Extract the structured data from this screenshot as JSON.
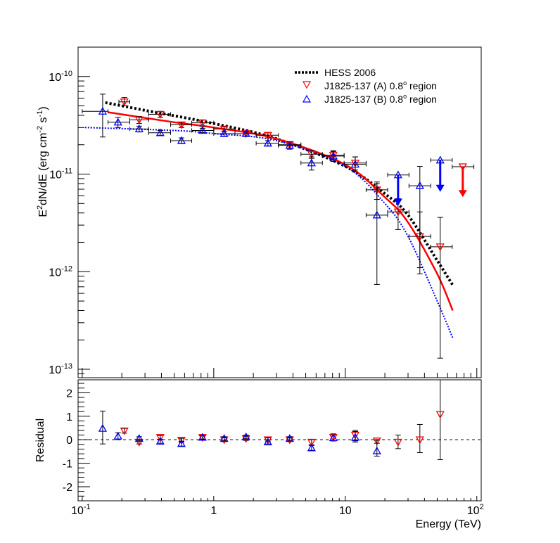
{
  "chart_data": [
    {
      "type": "scatter",
      "panel": "spectrum",
      "title": "",
      "xlabel": "Energy (TeV)",
      "ylabel": "E^2dN/dE (erg cm^-2 s^-1)",
      "ylabel_parts": {
        "pre": "E",
        "sup1": "2",
        "mid": "dN/dE (erg cm",
        "sup2": "-2",
        "mid2": " s",
        "sup3": "-1",
        "post": ")"
      },
      "xscale": "log",
      "yscale": "log",
      "xlim": [
        0.093,
        108
      ],
      "ylim": [
        8.2e-14,
        2e-10
      ],
      "grid": false,
      "legend_position": "top-right",
      "x_ticks": [
        {
          "value": 0.1,
          "base": "10",
          "exp": "-1"
        },
        {
          "value": 1,
          "base": "1",
          "exp": ""
        },
        {
          "value": 10,
          "base": "10",
          "exp": ""
        },
        {
          "value": 100,
          "base": "10",
          "exp": "2"
        }
      ],
      "y_ticks": [
        {
          "value": 1e-10,
          "base": "10",
          "exp": "-10"
        },
        {
          "value": 1e-11,
          "base": "10",
          "exp": "-11"
        },
        {
          "value": 1e-12,
          "base": "10",
          "exp": "-12"
        },
        {
          "value": 1e-13,
          "base": "10",
          "exp": "-13"
        }
      ],
      "legend": [
        {
          "label": "HESS 2006",
          "marker": "dotted-line",
          "color": "#000000"
        },
        {
          "label_pre": "J1825-137 (A) 0.8",
          "label_sup": "o",
          "label_post": " region",
          "marker": "triangle-down",
          "color": "#ff0000"
        },
        {
          "label_pre": "J1825-137 (B) 0.8",
          "label_sup": "o",
          "label_post": " region",
          "marker": "triangle-up",
          "color": "#0000ff"
        }
      ],
      "curves": [
        {
          "name": "HESS 2006",
          "color": "#000000",
          "style": "dotted-thick",
          "points": [
            [
              0.15,
              5.4e-11
            ],
            [
              0.3,
              4.5e-11
            ],
            [
              1,
              3.3e-11
            ],
            [
              3,
              2.3e-11
            ],
            [
              10,
              1.2e-11
            ],
            [
              20,
              6.3e-12
            ],
            [
              30,
              3.8e-12
            ],
            [
              50,
              1.3e-12
            ],
            [
              65.6,
              7.3e-13
            ]
          ]
        },
        {
          "name": "J1825-137 (A) fit",
          "color": "#ff0000",
          "style": "solid",
          "points": [
            [
              0.158,
              4.3e-11
            ],
            [
              0.5,
              3.4e-11
            ],
            [
              1,
              3e-11
            ],
            [
              3,
              2.3e-11
            ],
            [
              10,
              1.25e-11
            ],
            [
              20,
              5.8e-12
            ],
            [
              30,
              3.2e-12
            ],
            [
              50,
              9.5e-13
            ],
            [
              65.6,
              4e-13
            ]
          ]
        },
        {
          "name": "J1825-137 (B) fit",
          "color": "#0000ff",
          "style": "dotted",
          "points": [
            [
              0.105,
              3e-11
            ],
            [
              0.5,
              2.8e-11
            ],
            [
              1,
              2.6e-11
            ],
            [
              3,
              2.2e-11
            ],
            [
              10,
              1.2e-11
            ],
            [
              20,
              5e-12
            ],
            [
              30,
              2.3e-12
            ],
            [
              50,
              5e-13
            ],
            [
              65.6,
              2.1e-13
            ]
          ]
        }
      ],
      "series": [
        {
          "name": "J1825-137 (A) 0.8 region",
          "color": "#ff0000",
          "marker": "triangle-down",
          "points": [
            {
              "x": 0.209,
              "y": 5.5e-11,
              "xlo": 0.19,
              "xhi": 0.23,
              "ylo": 5e-11,
              "yhi": 6.1e-11
            },
            {
              "x": 0.271,
              "y": 3.6e-11,
              "xlo": 0.23,
              "xhi": 0.32,
              "ylo": 3.3e-11,
              "yhi": 3.9e-11
            },
            {
              "x": 0.392,
              "y": 4.1e-11,
              "xlo": 0.32,
              "xhi": 0.47,
              "ylo": 3.8e-11,
              "yhi": 4.4e-11
            },
            {
              "x": 0.568,
              "y": 3.2e-11,
              "xlo": 0.47,
              "xhi": 0.68,
              "ylo": 3e-11,
              "yhi": 3.4e-11
            },
            {
              "x": 0.821,
              "y": 3.35e-11,
              "xlo": 0.68,
              "xhi": 1.0,
              "ylo": 3.1e-11,
              "yhi": 3.6e-11
            },
            {
              "x": 1.2,
              "y": 2.9e-11,
              "xlo": 1.0,
              "xhi": 1.45,
              "ylo": 2.75e-11,
              "yhi": 3.05e-11
            },
            {
              "x": 1.76,
              "y": 2.6e-11,
              "xlo": 1.45,
              "xhi": 2.1,
              "ylo": 2.45e-11,
              "yhi": 2.75e-11
            },
            {
              "x": 2.58,
              "y": 2.5e-11,
              "xlo": 2.1,
              "xhi": 3.1,
              "ylo": 2.35e-11,
              "yhi": 2.65e-11
            },
            {
              "x": 3.78,
              "y": 2e-11,
              "xlo": 3.1,
              "xhi": 4.6,
              "ylo": 1.85e-11,
              "yhi": 2.15e-11
            },
            {
              "x": 5.54,
              "y": 1.6e-11,
              "xlo": 4.6,
              "xhi": 6.7,
              "ylo": 1.45e-11,
              "yhi": 1.75e-11
            },
            {
              "x": 8.11,
              "y": 1.56e-11,
              "xlo": 6.7,
              "xhi": 9.8,
              "ylo": 1.35e-11,
              "yhi": 1.75e-11
            },
            {
              "x": 11.9,
              "y": 1.3e-11,
              "xlo": 9.8,
              "xhi": 14.4,
              "ylo": 1.1e-11,
              "yhi": 1.5e-11
            },
            {
              "x": 17.4,
              "y": 6.9e-12,
              "xlo": 14.4,
              "xhi": 21,
              "ylo": 5.5e-12,
              "yhi": 8.3e-12
            },
            {
              "x": 25.2,
              "y": 4.1e-12,
              "xlo": 21,
              "xhi": 30.5,
              "ylo": 2.7e-12,
              "yhi": 5.6e-12
            },
            {
              "x": 36.9,
              "y": 2.3e-12,
              "xlo": 30.5,
              "xhi": 44.6,
              "ylo": 1.1e-12,
              "yhi": 4.1e-12
            },
            {
              "x": 52.7,
              "y": 1.8e-12,
              "xlo": 44.6,
              "xhi": 65,
              "ylo": 1.3e-13,
              "yhi": 3.6e-12
            }
          ],
          "upper_limits": [
            {
              "x": 78.2,
              "y": 1.19e-11,
              "xlo": 65,
              "xhi": 95,
              "arrow_to": 6e-12
            }
          ]
        },
        {
          "name": "J1825-137 (B) 0.8 region",
          "color": "#0000ff",
          "marker": "triangle-up",
          "points": [
            {
              "x": 0.143,
              "y": 4.4e-11,
              "xlo": 0.1,
              "xhi": 0.157,
              "ylo": 2.4e-11,
              "yhi": 6.6e-11
            },
            {
              "x": 0.187,
              "y": 3.4e-11,
              "xlo": 0.157,
              "xhi": 0.23,
              "ylo": 3e-11,
              "yhi": 3.8e-11
            },
            {
              "x": 0.271,
              "y": 2.9e-11,
              "xlo": 0.23,
              "xhi": 0.32,
              "ylo": 2.7e-11,
              "yhi": 3.1e-11
            },
            {
              "x": 0.392,
              "y": 2.65e-11,
              "xlo": 0.32,
              "xhi": 0.47,
              "ylo": 2.5e-11,
              "yhi": 2.8e-11
            },
            {
              "x": 0.568,
              "y": 2.2e-11,
              "xlo": 0.47,
              "xhi": 0.68,
              "ylo": 2.05e-11,
              "yhi": 2.35e-11
            },
            {
              "x": 0.821,
              "y": 2.8e-11,
              "xlo": 0.68,
              "xhi": 1.0,
              "ylo": 2.65e-11,
              "yhi": 2.95e-11
            },
            {
              "x": 1.2,
              "y": 2.6e-11,
              "xlo": 1.0,
              "xhi": 1.45,
              "ylo": 2.45e-11,
              "yhi": 2.75e-11
            },
            {
              "x": 1.76,
              "y": 2.6e-11,
              "xlo": 1.45,
              "xhi": 2.1,
              "ylo": 2.45e-11,
              "yhi": 2.75e-11
            },
            {
              "x": 2.58,
              "y": 2.07e-11,
              "xlo": 2.1,
              "xhi": 3.1,
              "ylo": 1.95e-11,
              "yhi": 2.2e-11
            },
            {
              "x": 3.78,
              "y": 1.97e-11,
              "xlo": 3.1,
              "xhi": 4.6,
              "ylo": 1.8e-11,
              "yhi": 2.15e-11
            },
            {
              "x": 5.54,
              "y": 1.3e-11,
              "xlo": 4.6,
              "xhi": 6.7,
              "ylo": 1.1e-11,
              "yhi": 1.5e-11
            },
            {
              "x": 8.11,
              "y": 1.53e-11,
              "xlo": 6.7,
              "xhi": 9.8,
              "ylo": 1.35e-11,
              "yhi": 1.7e-11
            },
            {
              "x": 11.9,
              "y": 1.26e-11,
              "xlo": 9.8,
              "xhi": 14.4,
              "ylo": 1.05e-11,
              "yhi": 1.5e-11
            },
            {
              "x": 17.4,
              "y": 3.8e-12,
              "xlo": 14.4,
              "xhi": 21,
              "ylo": 7.4e-13,
              "yhi": 8e-12
            },
            {
              "x": 36.9,
              "y": 7.6e-12,
              "xlo": 30.5,
              "xhi": 44.6,
              "ylo": 9.5e-13,
              "yhi": 1.2e-11
            }
          ],
          "upper_limits": [
            {
              "x": 25.2,
              "y": 9.8e-12,
              "xlo": 21,
              "xhi": 30.5,
              "arrow_to": 4.9e-12
            },
            {
              "x": 52.7,
              "y": 1.39e-11,
              "xlo": 44.6,
              "xhi": 65,
              "arrow_to": 6.8e-12
            }
          ]
        }
      ]
    },
    {
      "type": "scatter",
      "panel": "residual",
      "xlabel": "Energy (TeV)",
      "ylabel": "Residual",
      "xscale": "log",
      "yscale": "linear",
      "xlim": [
        0.093,
        108
      ],
      "ylim": [
        -2.6,
        2.55
      ],
      "grid": false,
      "y_ticks": [
        -2,
        -1,
        0,
        1,
        2
      ],
      "y_tick_labels": [
        "-2",
        "-1",
        "0",
        "1",
        "2"
      ],
      "reference_line": 0,
      "series": [
        {
          "name": "J1825-137 (A) 0.8 region",
          "color": "#ff0000",
          "marker": "triangle-down",
          "points": [
            {
              "x": 0.209,
              "y": 0.38,
              "ylo": 0.28,
              "yhi": 0.48
            },
            {
              "x": 0.271,
              "y": -0.1,
              "ylo": -0.18,
              "yhi": 0.0
            },
            {
              "x": 0.392,
              "y": 0.1,
              "ylo": 0.02,
              "yhi": 0.18
            },
            {
              "x": 0.568,
              "y": -0.02,
              "ylo": -0.1,
              "yhi": 0.06
            },
            {
              "x": 0.821,
              "y": 0.1,
              "ylo": 0.02,
              "yhi": 0.18
            },
            {
              "x": 1.2,
              "y": 0.0,
              "ylo": -0.08,
              "yhi": 0.08
            },
            {
              "x": 1.76,
              "y": 0.05,
              "ylo": -0.03,
              "yhi": 0.13
            },
            {
              "x": 2.58,
              "y": 0.0,
              "ylo": -0.08,
              "yhi": 0.08
            },
            {
              "x": 3.78,
              "y": 0.0,
              "ylo": -0.08,
              "yhi": 0.08
            },
            {
              "x": 5.54,
              "y": -0.1,
              "ylo": -0.2,
              "yhi": 0.0
            },
            {
              "x": 8.11,
              "y": 0.1,
              "ylo": -0.05,
              "yhi": 0.25
            },
            {
              "x": 11.9,
              "y": 0.2,
              "ylo": -0.05,
              "yhi": 0.4
            },
            {
              "x": 17.4,
              "y": -0.05,
              "ylo": -0.15,
              "yhi": 0.0
            },
            {
              "x": 25.2,
              "y": -0.1,
              "ylo": -0.38,
              "yhi": 0.2
            },
            {
              "x": 36.9,
              "y": 0.0,
              "ylo": -0.55,
              "yhi": 0.65
            },
            {
              "x": 52.7,
              "y": 1.08,
              "ylo": -0.85,
              "yhi": 2.6
            }
          ]
        },
        {
          "name": "J1825-137 (B) 0.8 region",
          "color": "#0000ff",
          "marker": "triangle-up",
          "points": [
            {
              "x": 0.143,
              "y": 0.48,
              "ylo": -0.18,
              "yhi": 1.22
            },
            {
              "x": 0.187,
              "y": 0.15,
              "ylo": 0.0,
              "yhi": 0.3
            },
            {
              "x": 0.271,
              "y": 0.05,
              "ylo": -0.03,
              "yhi": 0.13
            },
            {
              "x": 0.392,
              "y": -0.07,
              "ylo": -0.15,
              "yhi": 0.01
            },
            {
              "x": 0.568,
              "y": -0.17,
              "ylo": -0.27,
              "yhi": -0.07
            },
            {
              "x": 0.821,
              "y": 0.1,
              "ylo": 0.02,
              "yhi": 0.18
            },
            {
              "x": 1.2,
              "y": 0.05,
              "ylo": -0.03,
              "yhi": 0.13
            },
            {
              "x": 1.76,
              "y": 0.12,
              "ylo": 0.04,
              "yhi": 0.2
            },
            {
              "x": 2.58,
              "y": -0.1,
              "ylo": -0.18,
              "yhi": -0.02
            },
            {
              "x": 3.78,
              "y": 0.05,
              "ylo": -0.03,
              "yhi": 0.13
            },
            {
              "x": 5.54,
              "y": -0.35,
              "ylo": -0.45,
              "yhi": -0.25
            },
            {
              "x": 8.11,
              "y": 0.08,
              "ylo": -0.05,
              "yhi": 0.2
            },
            {
              "x": 11.9,
              "y": 0.1,
              "ylo": -0.1,
              "yhi": 0.35
            },
            {
              "x": 17.4,
              "y": -0.48,
              "ylo": -0.7,
              "yhi": -0.02
            }
          ]
        }
      ]
    }
  ]
}
